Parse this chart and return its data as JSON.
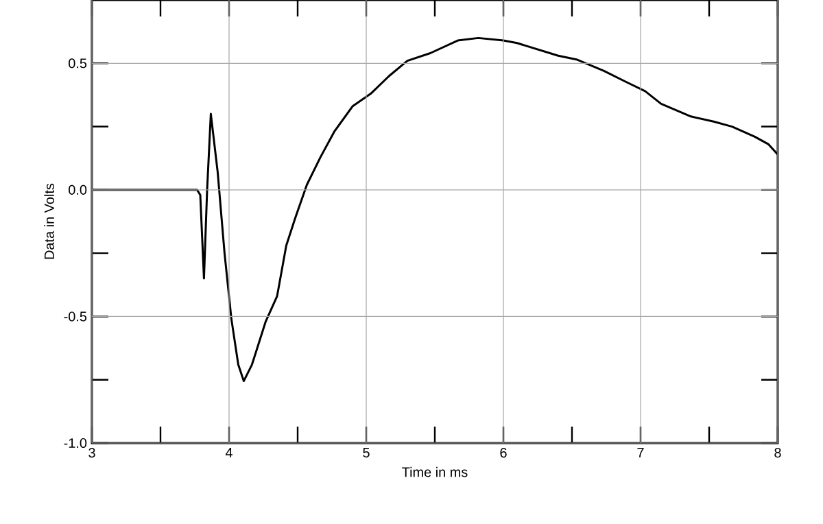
{
  "chart_data": {
    "type": "line",
    "xlabel": "Time in ms",
    "ylabel": "Data in Volts",
    "xlim": [
      3,
      8
    ],
    "ylim": [
      -1.0,
      0.75
    ],
    "xticks": [
      3,
      {
        "value": 3.5,
        "label": null
      },
      4,
      {
        "value": 4.5,
        "label": null
      },
      5,
      {
        "value": 5.5,
        "label": null
      },
      6,
      {
        "value": 6.5,
        "label": null
      },
      7,
      {
        "value": 7.5,
        "label": null
      },
      8
    ],
    "yticks": [
      {
        "value": -1.0,
        "label": "-1.0"
      },
      {
        "value": -0.75,
        "label": null
      },
      {
        "value": -0.5,
        "label": "-0.5"
      },
      {
        "value": -0.25,
        "label": null
      },
      {
        "value": 0.0,
        "label": "0.0"
      },
      {
        "value": 0.25,
        "label": null
      },
      {
        "value": 0.5,
        "label": "0.5"
      }
    ],
    "grid": true,
    "marker": "none",
    "line_style": "solid",
    "series": [
      {
        "color": "#000000",
        "x": [
          3.0,
          3.767,
          3.79,
          3.817,
          3.84,
          3.867,
          3.917,
          3.967,
          4.017,
          4.067,
          4.107,
          4.167,
          4.267,
          4.35,
          4.417,
          4.483,
          4.567,
          4.667,
          4.767,
          4.9,
          5.033,
          5.167,
          5.3,
          5.467,
          5.667,
          5.817,
          6.0,
          6.1,
          6.4,
          6.533,
          6.733,
          6.9,
          7.033,
          7.15,
          7.367,
          7.533,
          7.667,
          7.833,
          7.933,
          8.0
        ],
        "values": [
          0.0,
          0.0,
          -0.02,
          -0.35,
          0.0,
          0.3,
          0.07,
          -0.25,
          -0.51,
          -0.69,
          -0.755,
          -0.69,
          -0.52,
          -0.42,
          -0.22,
          -0.11,
          0.02,
          0.13,
          0.23,
          0.33,
          0.38,
          0.45,
          0.51,
          0.54,
          0.59,
          0.6,
          0.59,
          0.58,
          0.53,
          0.515,
          0.47,
          0.425,
          0.39,
          0.34,
          0.29,
          0.27,
          0.25,
          0.21,
          0.18,
          0.14
        ]
      }
    ]
  }
}
